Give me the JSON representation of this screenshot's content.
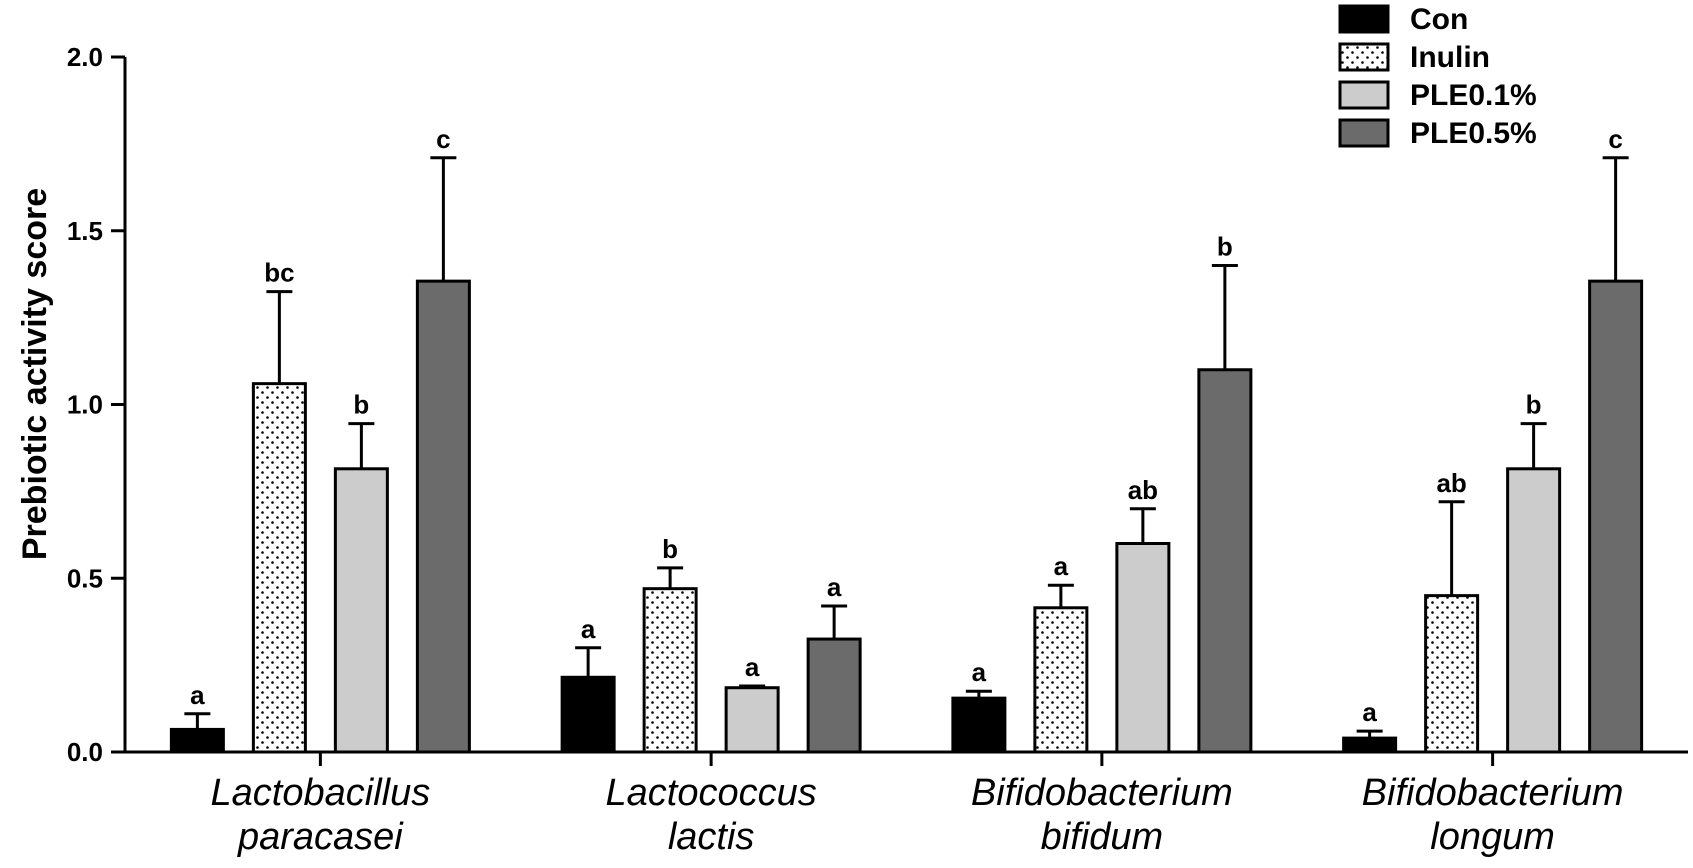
{
  "chart_data": {
    "type": "bar",
    "ylabel": "Prebiotic activity score",
    "ylim": [
      0,
      2.0
    ],
    "yticks": [
      "0.0",
      "0.5",
      "1.0",
      "1.5",
      "2.0"
    ],
    "grid": false,
    "legend_position": "top-right",
    "categories": [
      [
        "Lactobacillus",
        "paracasei"
      ],
      [
        "Lactococcus",
        "lactis"
      ],
      [
        "Bifidobacterium",
        "bifidum"
      ],
      [
        "Bifidobacterium",
        "longum"
      ]
    ],
    "series": [
      {
        "name": "Con",
        "fill": "black",
        "color": "#000000",
        "values": [
          0.065,
          0.215,
          0.155,
          0.04
        ],
        "errors": [
          0.045,
          0.085,
          0.02,
          0.02
        ],
        "significance": [
          "a",
          "a",
          "a",
          "a"
        ]
      },
      {
        "name": "Inulin",
        "fill": "dotted",
        "color": "#ffffff",
        "values": [
          1.06,
          0.47,
          0.415,
          0.45
        ],
        "errors": [
          0.265,
          0.06,
          0.065,
          0.27
        ],
        "significance": [
          "bc",
          "b",
          "a",
          "ab"
        ]
      },
      {
        "name": "PLE0.1%",
        "fill": "light-gray",
        "color": "#cccccc",
        "values": [
          0.815,
          0.185,
          0.6,
          0.815
        ],
        "errors": [
          0.13,
          0.005,
          0.1,
          0.13
        ],
        "significance": [
          "b",
          "a",
          "ab",
          "b"
        ]
      },
      {
        "name": "PLE0.5%",
        "fill": "dark-gray",
        "color": "#6b6b6b",
        "values": [
          1.355,
          0.325,
          1.1,
          1.355
        ],
        "errors": [
          0.355,
          0.095,
          0.3,
          0.355
        ],
        "significance": [
          "c",
          "a",
          "b",
          "c"
        ]
      }
    ]
  }
}
